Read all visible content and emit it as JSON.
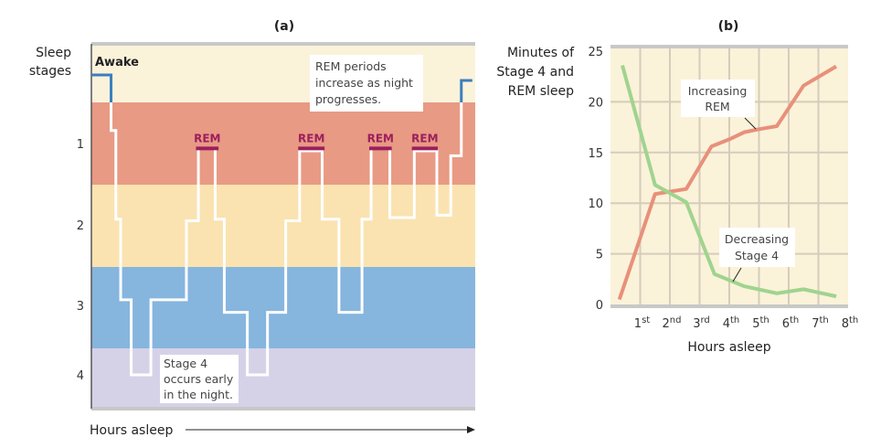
{
  "chart_data": [
    {
      "type": "line",
      "panel_label": "(a)",
      "ylabel": "Sleep stages",
      "xlabel": "Hours asleep",
      "stage_labels": [
        "Awake",
        "1",
        "2",
        "3",
        "4"
      ],
      "band_colors": [
        "#fbf2da",
        "#e89a84",
        "#fae3b1",
        "#86b5de",
        "#d5d2e8"
      ],
      "hypnogram_color": "#ffffff",
      "awake_color": "#3a7fbf",
      "rem_color": "#9c1f5c",
      "xlim": [
        0,
        8
      ],
      "hypnogram": [
        [
          0,
          0
        ],
        [
          0.41,
          0
        ],
        [
          0.41,
          0.4
        ],
        [
          0.41,
          0.81
        ],
        [
          0.51,
          0.81
        ],
        [
          0.51,
          1.93
        ],
        [
          0.61,
          1.93
        ],
        [
          0.61,
          2.93
        ],
        [
          0.83,
          2.93
        ],
        [
          0.83,
          4
        ],
        [
          1.24,
          4
        ],
        [
          1.24,
          2.93
        ],
        [
          1.98,
          2.93
        ],
        [
          1.98,
          1.95
        ],
        [
          2.23,
          1.95
        ],
        [
          2.23,
          1.06
        ],
        [
          2.58,
          1.06
        ],
        [
          2.58,
          1.93
        ],
        [
          2.77,
          1.93
        ],
        [
          2.77,
          3.1
        ],
        [
          3.25,
          3.1
        ],
        [
          3.25,
          4
        ],
        [
          3.67,
          4
        ],
        [
          3.67,
          3.1
        ],
        [
          4.05,
          3.1
        ],
        [
          4.05,
          1.95
        ],
        [
          4.34,
          1.95
        ],
        [
          4.34,
          1.09
        ],
        [
          4.81,
          1.09
        ],
        [
          4.81,
          1.93
        ],
        [
          5.16,
          1.93
        ],
        [
          5.16,
          3.1
        ],
        [
          5.64,
          3.1
        ],
        [
          5.64,
          1.93
        ],
        [
          5.83,
          1.93
        ],
        [
          5.83,
          1.06
        ],
        [
          6.22,
          1.06
        ],
        [
          6.22,
          1.91
        ],
        [
          6.73,
          1.91
        ],
        [
          6.73,
          1.09
        ],
        [
          7.2,
          1.09
        ],
        [
          7.2,
          1.88
        ],
        [
          7.49,
          1.88
        ],
        [
          7.49,
          1.15
        ],
        [
          7.71,
          1.15
        ],
        [
          7.71,
          0.4
        ],
        [
          7.71,
          0.08
        ],
        [
          7.94,
          0.08
        ]
      ],
      "rem_periods": [
        {
          "label": "REM",
          "start": 2.18,
          "end": 2.65
        },
        {
          "label": "REM",
          "start": 4.31,
          "end": 4.86
        },
        {
          "label": "REM",
          "start": 5.79,
          "end": 6.26
        },
        {
          "label": "REM",
          "start": 6.68,
          "end": 7.22
        }
      ],
      "annotations": [
        {
          "lines": [
            "REM periods",
            "increase as night",
            "progresses."
          ]
        },
        {
          "lines": [
            "Stage 4",
            "occurs early",
            "in the night."
          ]
        }
      ]
    },
    {
      "type": "line",
      "panel_label": "(b)",
      "ylabel": [
        "Minutes of",
        "Stage 4 and",
        "REM sleep"
      ],
      "xlabel": "Hours asleep",
      "xlim": [
        0,
        8
      ],
      "ylim": [
        0,
        25
      ],
      "yticks": [
        0,
        5,
        10,
        15,
        20,
        25
      ],
      "xticks": [
        {
          "n": "1",
          "sup": "st"
        },
        {
          "n": "2",
          "sup": "nd"
        },
        {
          "n": "3",
          "sup": "rd"
        },
        {
          "n": "4",
          "sup": "th"
        },
        {
          "n": "5",
          "sup": "th"
        },
        {
          "n": "6",
          "sup": "th"
        },
        {
          "n": "7",
          "sup": "th"
        },
        {
          "n": "8",
          "sup": "th"
        }
      ],
      "grid": true,
      "background": "#fbf2da",
      "series": [
        {
          "name": "Increasing REM",
          "color": "#e8907a",
          "x": [
            0.3,
            1.5,
            2.55,
            3.4,
            4.0,
            4.5,
            5.0,
            5.6,
            6.5,
            7.6
          ],
          "y": [
            0.5,
            10.9,
            11.4,
            15.6,
            16.3,
            17.0,
            17.3,
            17.6,
            21.6,
            23.5
          ]
        },
        {
          "name": "Decreasing Stage 4",
          "color": "#9fd48e",
          "x": [
            0.4,
            1.5,
            2.55,
            3.5,
            4.5,
            5.6,
            6.5,
            7.6
          ],
          "y": [
            23.6,
            11.8,
            10.1,
            3.0,
            1.8,
            1.1,
            1.5,
            0.8
          ]
        }
      ],
      "annotations": [
        {
          "lines": [
            "Increasing",
            "REM"
          ]
        },
        {
          "lines": [
            "Decreasing",
            "Stage 4"
          ]
        }
      ]
    }
  ]
}
